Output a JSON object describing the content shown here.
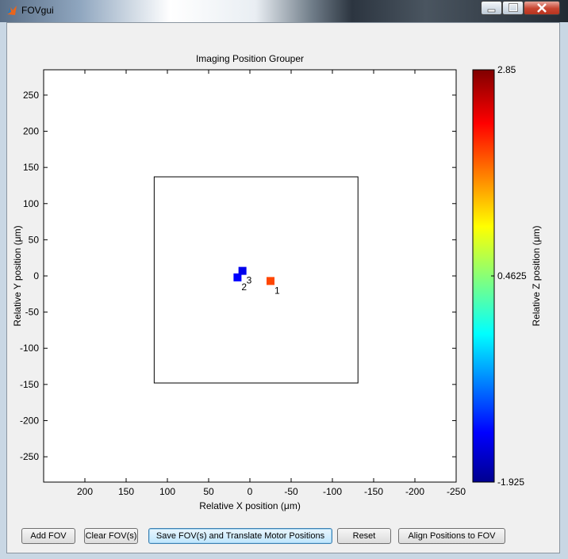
{
  "window": {
    "title": "FOVgui",
    "controls": {
      "minimize": "–",
      "maximize": "□",
      "close": "✕"
    }
  },
  "plot": {
    "title": "Imaging Position Grouper",
    "xlabel": "Relative X position (μm)",
    "ylabel": "Relative Y position (μm)",
    "xlim": [
      250,
      -250
    ],
    "ylim": [
      -285,
      285
    ],
    "x_reversed": true,
    "xticks": [
      200,
      150,
      100,
      50,
      0,
      -50,
      -100,
      -150,
      -200,
      -250
    ],
    "xtick_labels": [
      "200",
      "150",
      "100",
      "50",
      "0",
      "-50",
      "-100",
      "-150",
      "-200",
      "-250"
    ],
    "yticks": [
      250,
      200,
      150,
      100,
      50,
      0,
      -50,
      -100,
      -150,
      -200,
      -250
    ],
    "ytick_labels": [
      "250",
      "200",
      "150",
      "100",
      "50",
      "0",
      "-50",
      "-100",
      "-150",
      "-200",
      "-250"
    ],
    "fov_rectangle": {
      "x_min": -131,
      "x_max": 116,
      "y_min": -148,
      "y_max": 137
    },
    "grid": false
  },
  "chart_data": {
    "type": "scatter",
    "title": "Imaging Position Grouper",
    "xlabel": "Relative X position (μm)",
    "ylabel": "Relative Y position (μm)",
    "xlim": [
      250,
      -250
    ],
    "ylim": [
      -285,
      285
    ],
    "points": [
      {
        "label": "1",
        "x": -25,
        "y": -7,
        "z": 1.9
      },
      {
        "label": "2",
        "x": 15,
        "y": -2,
        "z": -1.35
      },
      {
        "label": "3",
        "x": 9,
        "y": 7,
        "z": -1.45
      }
    ],
    "colorbar": {
      "label": "Relative Z position (μm)",
      "min": -1.925,
      "max": 2.85,
      "ticks": [
        2.85,
        0.4625,
        -1.925
      ],
      "tick_labels": [
        "2.85",
        "0.4625",
        "-1.925"
      ],
      "colormap": "jet"
    }
  },
  "buttons": {
    "add_fov": "Add FOV",
    "clear_fovs": "Clear FOV(s)",
    "save_fovs": "Save FOV(s) and Translate Motor Positions",
    "reset": "Reset",
    "align": "Align Positions to FOV"
  },
  "colors": {
    "titlebar_icon": "#e8651c",
    "plot_background": "#ffffff",
    "window_background": "#f0f0f0",
    "point_1": "#ff4a00",
    "point_2": "#0050ff",
    "point_3": "#0a60ff"
  }
}
